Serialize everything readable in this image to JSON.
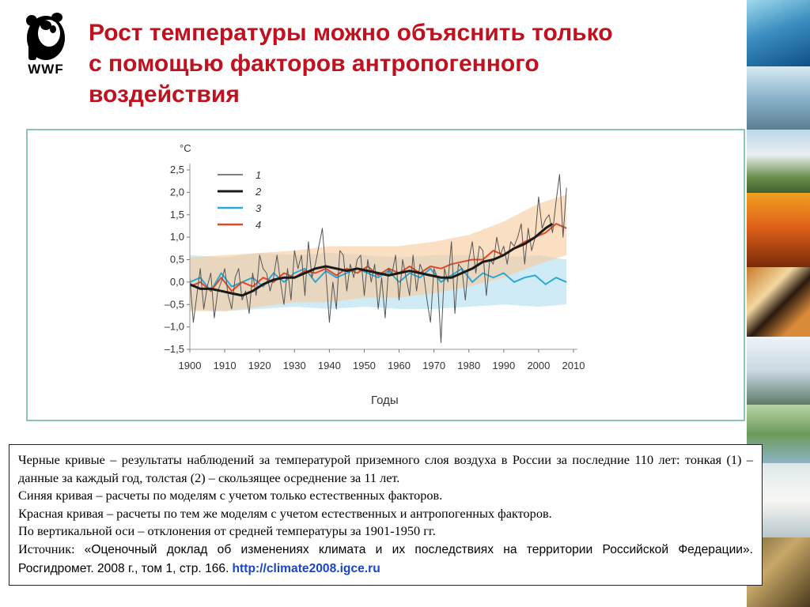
{
  "logo": {
    "text": "WWF"
  },
  "title": {
    "line1": "Рост температуры можно объяснить только",
    "line2": "с помощью факторов антропогенного",
    "line3": "воздействия"
  },
  "colors": {
    "title": "#c0111f",
    "observed": "#1a1a1a",
    "natural": "#2aa8d8",
    "natural_band": "#bfe4f2",
    "anthropogenic": "#e0482a",
    "anthropogenic_band": "#f9c99a",
    "link": "#1a44c9"
  },
  "chart_data": {
    "type": "line",
    "xlabel": "Годы",
    "ylabel": "°С",
    "xlim": [
      1900,
      2010
    ],
    "ylim": [
      -1.5,
      2.5
    ],
    "x_ticks": [
      "1900",
      "1910",
      "1920",
      "1930",
      "1940",
      "1950",
      "1960",
      "1970",
      "1980",
      "1990",
      "2000",
      "2010"
    ],
    "y_ticks": [
      "2,5",
      "2,0",
      "1,5",
      "1,0",
      "0,5",
      "0,0",
      "–0,5",
      "–1,0",
      "–1,5"
    ],
    "legend": [
      {
        "label": "1",
        "series": "observed_annual"
      },
      {
        "label": "2",
        "series": "observed_smoothed"
      },
      {
        "label": "3",
        "series": "natural_model"
      },
      {
        "label": "4",
        "series": "natural_plus_anthropogenic_model"
      }
    ],
    "series": [
      {
        "name": "1",
        "key": "observed_annual",
        "x": [
          1900,
          1901,
          1902,
          1903,
          1904,
          1905,
          1906,
          1907,
          1908,
          1909,
          1910,
          1911,
          1912,
          1913,
          1914,
          1915,
          1916,
          1917,
          1918,
          1919,
          1920,
          1921,
          1922,
          1923,
          1924,
          1925,
          1926,
          1927,
          1928,
          1929,
          1930,
          1931,
          1932,
          1933,
          1934,
          1935,
          1936,
          1937,
          1938,
          1939,
          1940,
          1941,
          1942,
          1943,
          1944,
          1945,
          1946,
          1947,
          1948,
          1949,
          1950,
          1951,
          1952,
          1953,
          1954,
          1955,
          1956,
          1957,
          1958,
          1959,
          1960,
          1961,
          1962,
          1963,
          1964,
          1965,
          1966,
          1967,
          1968,
          1969,
          1970,
          1971,
          1972,
          1973,
          1974,
          1975,
          1976,
          1977,
          1978,
          1979,
          1980,
          1981,
          1982,
          1983,
          1984,
          1985,
          1986,
          1987,
          1988,
          1989,
          1990,
          1991,
          1992,
          1993,
          1994,
          1995,
          1996,
          1997,
          1998,
          1999,
          2000,
          2001,
          2002,
          2003,
          2004,
          2005,
          2006,
          2007,
          2008
        ],
        "y": [
          0.1,
          -0.9,
          -0.3,
          0.3,
          -0.6,
          -0.1,
          0.2,
          -0.8,
          -0.2,
          0.0,
          0.3,
          -0.3,
          -0.6,
          0.1,
          0.3,
          -0.4,
          -0.2,
          -0.7,
          0.2,
          -0.3,
          0.6,
          0.3,
          0.2,
          -0.2,
          0.1,
          0.6,
          0.0,
          -0.5,
          0.3,
          -0.4,
          0.7,
          0.3,
          0.6,
          -0.3,
          0.9,
          0.1,
          0.4,
          0.8,
          1.2,
          0.2,
          -0.9,
          0.0,
          -0.6,
          0.7,
          0.6,
          -0.2,
          0.4,
          0.1,
          0.5,
          0.6,
          -0.3,
          0.5,
          0.0,
          0.4,
          -0.6,
          0.1,
          -0.8,
          0.3,
          0.2,
          0.6,
          -0.4,
          0.5,
          0.1,
          -0.3,
          0.6,
          -0.2,
          0.4,
          0.2,
          -0.4,
          -0.9,
          0.3,
          0.1,
          -1.35,
          0.3,
          0.0,
          0.9,
          -0.7,
          0.4,
          0.3,
          -0.4,
          0.5,
          0.9,
          0.2,
          0.8,
          0.7,
          -0.3,
          0.5,
          0.4,
          1.0,
          0.6,
          0.8,
          0.4,
          0.9,
          0.8,
          1.0,
          1.3,
          0.4,
          1.2,
          0.7,
          1.0,
          1.9,
          1.2,
          1.4,
          1.5,
          1.1,
          1.8,
          2.4,
          1.0,
          2.1
        ]
      },
      {
        "name": "2",
        "key": "observed_smoothed",
        "x": [
          1900,
          1903,
          1906,
          1909,
          1912,
          1915,
          1918,
          1921,
          1924,
          1927,
          1930,
          1933,
          1936,
          1939,
          1942,
          1945,
          1948,
          1951,
          1954,
          1957,
          1960,
          1963,
          1966,
          1969,
          1972,
          1975,
          1978,
          1981,
          1984,
          1987,
          1990,
          1993,
          1996,
          1999,
          2002,
          2004
        ],
        "y": [
          -0.05,
          -0.15,
          -0.15,
          -0.2,
          -0.25,
          -0.3,
          -0.2,
          -0.05,
          0.05,
          0.1,
          0.1,
          0.2,
          0.3,
          0.35,
          0.3,
          0.25,
          0.3,
          0.25,
          0.2,
          0.15,
          0.2,
          0.25,
          0.2,
          0.15,
          0.1,
          0.1,
          0.2,
          0.3,
          0.45,
          0.5,
          0.6,
          0.75,
          0.85,
          1.0,
          1.2,
          1.3
        ]
      },
      {
        "name": "3",
        "key": "natural_model",
        "x": [
          1900,
          1903,
          1906,
          1909,
          1912,
          1915,
          1918,
          1921,
          1924,
          1927,
          1930,
          1933,
          1936,
          1939,
          1942,
          1945,
          1948,
          1951,
          1954,
          1957,
          1960,
          1963,
          1966,
          1969,
          1972,
          1975,
          1978,
          1981,
          1984,
          1987,
          1990,
          1993,
          1996,
          1999,
          2002,
          2005,
          2008
        ],
        "y": [
          0.0,
          0.1,
          -0.2,
          0.2,
          -0.1,
          0.0,
          0.1,
          -0.1,
          0.2,
          0.0,
          0.2,
          0.3,
          0.0,
          0.25,
          0.1,
          0.2,
          0.3,
          0.2,
          0.1,
          0.25,
          0.0,
          0.2,
          0.1,
          0.3,
          0.0,
          0.15,
          0.3,
          0.0,
          0.2,
          0.1,
          0.2,
          0.0,
          0.1,
          0.15,
          -0.05,
          0.1,
          0.0
        ]
      },
      {
        "name": "4",
        "key": "natural_plus_anthropogenic_model",
        "x": [
          1900,
          1903,
          1906,
          1909,
          1912,
          1915,
          1918,
          1921,
          1924,
          1927,
          1930,
          1933,
          1936,
          1939,
          1942,
          1945,
          1948,
          1951,
          1954,
          1957,
          1960,
          1963,
          1966,
          1969,
          1972,
          1975,
          1978,
          1981,
          1984,
          1987,
          1990,
          1993,
          1996,
          1999,
          2002,
          2005,
          2008
        ],
        "y": [
          -0.1,
          0.0,
          -0.2,
          0.1,
          -0.2,
          0.0,
          -0.1,
          0.1,
          0.0,
          0.2,
          0.1,
          0.25,
          0.2,
          0.3,
          0.15,
          0.3,
          0.2,
          0.35,
          0.15,
          0.3,
          0.2,
          0.35,
          0.2,
          0.35,
          0.3,
          0.4,
          0.45,
          0.5,
          0.5,
          0.7,
          0.6,
          0.75,
          0.9,
          1.0,
          1.1,
          1.3,
          1.2
        ]
      }
    ],
    "bands": [
      {
        "key": "natural_band",
        "x": [
          1900,
          1910,
          1920,
          1930,
          1940,
          1950,
          1960,
          1970,
          1980,
          1990,
          2000,
          2008
        ],
        "lower": [
          -0.6,
          -0.65,
          -0.6,
          -0.55,
          -0.6,
          -0.55,
          -0.6,
          -0.6,
          -0.55,
          -0.5,
          -0.55,
          -0.5
        ],
        "upper": [
          0.6,
          0.55,
          0.65,
          0.6,
          0.65,
          0.6,
          0.55,
          0.6,
          0.6,
          0.55,
          0.6,
          0.5
        ]
      },
      {
        "key": "anthropogenic_band",
        "x": [
          1900,
          1910,
          1920,
          1930,
          1940,
          1950,
          1960,
          1970,
          1980,
          1990,
          2000,
          2008
        ],
        "lower": [
          -0.65,
          -0.65,
          -0.55,
          -0.45,
          -0.45,
          -0.35,
          -0.35,
          -0.25,
          -0.1,
          0.1,
          0.4,
          0.6
        ],
        "upper": [
          0.55,
          0.6,
          0.65,
          0.7,
          0.8,
          0.8,
          0.8,
          0.9,
          1.05,
          1.35,
          1.75,
          1.95
        ]
      }
    ]
  },
  "caption": {
    "p1": "Черные кривые – результаты наблюдений за температурой приземного слоя воздуха в России за последние 110 лет: тонкая (1) – данные за каждый год, толстая (2) – скользящее осреднение за 11 лет.",
    "p2": "Синяя кривая – расчеты по моделям с учетом только естественных факторов.",
    "p3": "Красная кривая – расчеты по тем же моделям с учетом естественных и антропогенных факторов.",
    "p4": "По вертикальной оси – отклонения от средней температуры за 1901-1950 гг.",
    "source_label": "Источник:",
    "source_text": "«Оценочный доклад об изменениях климата и их последствиях на территории Российской Федерации». Росгидромет. 2008 г., том 1, стр. 166.",
    "source_link": "http://climate2008.igce.ru"
  }
}
